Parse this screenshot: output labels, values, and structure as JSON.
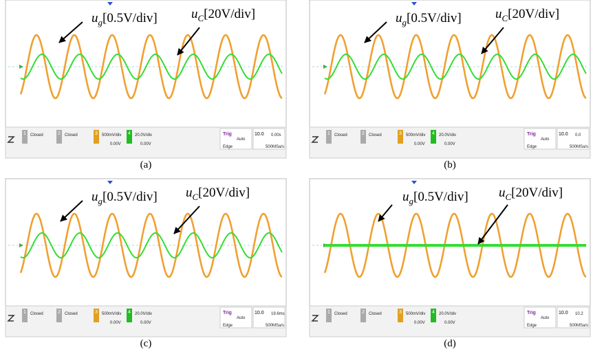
{
  "panels": [
    {
      "caption": "(a)",
      "labels": [
        {
          "symbol": "u",
          "subscript": "g",
          "scale": "[0.5V/div]"
        },
        {
          "symbol": "u",
          "subscript": "C",
          "scale": "[20V/div]"
        }
      ],
      "status": {
        "ch1": "1",
        "ch1_state": "Closed",
        "ch2": "2",
        "ch2_state": "Closed",
        "ch3": "3",
        "ch3_scale": "500mV/div",
        "ch3_offset": "0.00V",
        "ch4": "4",
        "ch4_scale": "20.0V/div",
        "ch4_offset": "0.00V",
        "trig": "Trig",
        "trig_mode": "Auto",
        "trig_type": "Edge",
        "time_div": "10.0",
        "time_pos": "0.00s",
        "sample": "500MSa/s"
      }
    },
    {
      "caption": "(b)",
      "labels": [
        {
          "symbol": "u",
          "subscript": "g",
          "scale": "[0.5V/div]"
        },
        {
          "symbol": "u",
          "subscript": "C",
          "scale": "[20V/div]"
        }
      ],
      "status": {
        "ch1": "1",
        "ch1_state": "Closed",
        "ch2": "2",
        "ch2_state": "Closed",
        "ch3": "3",
        "ch3_scale": "500mV/div",
        "ch3_offset": "0.00V",
        "ch4": "4",
        "ch4_scale": "20.0V/div",
        "ch4_offset": "0.00V",
        "trig": "Trig",
        "trig_mode": "Auto",
        "trig_type": "Edge",
        "time_div": "10.0",
        "time_pos": "0.0",
        "sample": "500MSa/s"
      }
    },
    {
      "caption": "(c)",
      "labels": [
        {
          "symbol": "u",
          "subscript": "g",
          "scale": "[0.5V/div]"
        },
        {
          "symbol": "u",
          "subscript": "C",
          "scale": "[20V/div]"
        }
      ],
      "status": {
        "ch1": "1",
        "ch1_state": "Closed",
        "ch2": "2",
        "ch2_state": "Closed",
        "ch3": "3",
        "ch3_scale": "500mV/div",
        "ch3_offset": "0.00V",
        "ch4": "4",
        "ch4_scale": "20.0V/div",
        "ch4_offset": "0.00V",
        "trig": "Trig",
        "trig_mode": "Auto",
        "trig_type": "Edge",
        "time_div": "10.0",
        "time_pos": "19.6ms",
        "sample": "500MSa/s"
      }
    },
    {
      "caption": "(d)",
      "labels": [
        {
          "symbol": "u",
          "subscript": "g",
          "scale": "[0.5V/div]"
        },
        {
          "symbol": "u",
          "subscript": "C",
          "scale": "[20V/div]"
        }
      ],
      "status": {
        "ch1": "1",
        "ch1_state": "Closed",
        "ch2": "2",
        "ch2_state": "Closed",
        "ch3": "3",
        "ch3_scale": "500mV/div",
        "ch3_offset": "0.00V",
        "ch4": "4",
        "ch4_scale": "20.0V/div",
        "ch4_offset": "0.00V",
        "trig": "Trig",
        "trig_mode": "Auto",
        "trig_type": "Edge",
        "time_div": "10.0",
        "time_pos": "10.2",
        "sample": "500MSa/s"
      }
    }
  ]
}
